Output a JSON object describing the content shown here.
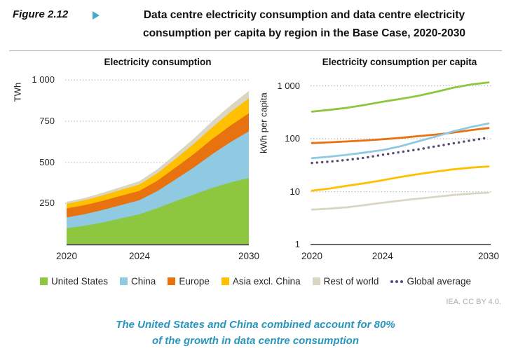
{
  "figure": {
    "label": "Figure 2.12",
    "title_line1": "Data centre electricity consumption and data centre electricity",
    "title_line2": "consumption per capita by region in the Base Case, 2020-2030"
  },
  "colors": {
    "united_states": "#8DC63F",
    "china": "#90C9E2",
    "europe": "#E8720F",
    "asia_excl_china": "#FFC000",
    "rest_of_world": "#DBD6C2",
    "global_average": "#5B4A78",
    "grid": "#ABABAB",
    "left_axis": "#595959",
    "right_axis": "#333333",
    "accent_teal": "#2796BE"
  },
  "chart_data": [
    {
      "type": "area",
      "stacked": true,
      "title": "Electricity consumption",
      "ylabel": "TWh",
      "yscale": "linear",
      "ylim": [
        0,
        1030
      ],
      "x": [
        2020,
        2021,
        2022,
        2023,
        2024,
        2025,
        2026,
        2027,
        2028,
        2029,
        2030
      ],
      "x_ticks": [
        {
          "label": "2020",
          "value": 2020
        },
        {
          "label": "2024",
          "value": 2024
        },
        {
          "label": "2030",
          "value": 2030
        }
      ],
      "y_ticks": [
        {
          "label": "250",
          "value": 250
        },
        {
          "label": "500",
          "value": 500
        },
        {
          "label": "750",
          "value": 750
        },
        {
          "label": "1 000",
          "value": 1000
        }
      ],
      "grid": true,
      "series": [
        {
          "name": "United States",
          "color_key": "united_states",
          "values": [
            100,
            115,
            135,
            160,
            185,
            222,
            265,
            305,
            345,
            378,
            405
          ]
        },
        {
          "name": "China",
          "color_key": "china",
          "values": [
            65,
            70,
            76,
            81,
            85,
            105,
            133,
            165,
            205,
            245,
            283
          ]
        },
        {
          "name": "Europe",
          "color_key": "europe",
          "values": [
            55,
            55,
            56,
            56,
            57,
            63,
            72,
            82,
            92,
            101,
            110
          ]
        },
        {
          "name": "Asia excl. China",
          "color_key": "asia_excl_china",
          "values": [
            28,
            30,
            33,
            36,
            38,
            45,
            53,
            62,
            71,
            81,
            90
          ]
        },
        {
          "name": "Rest of world",
          "color_key": "rest_of_world",
          "values": [
            13,
            14,
            16,
            18,
            21,
            25,
            29,
            33,
            38,
            42,
            46
          ]
        }
      ]
    },
    {
      "type": "line",
      "title": "Electricity consumption per capita",
      "ylabel": "kWh per capita",
      "yscale": "log",
      "ylim": [
        1,
        1300
      ],
      "x": [
        2020,
        2021,
        2022,
        2023,
        2024,
        2025,
        2026,
        2027,
        2028,
        2029,
        2030
      ],
      "x_ticks": [
        {
          "label": "2020",
          "value": 2020
        },
        {
          "label": "2024",
          "value": 2024
        },
        {
          "label": "2030",
          "value": 2030
        }
      ],
      "y_ticks": [
        {
          "label": "1",
          "value": 1
        },
        {
          "label": "10",
          "value": 10
        },
        {
          "label": "100",
          "value": 100
        },
        {
          "label": "1 000",
          "value": 1000
        }
      ],
      "grid": true,
      "series": [
        {
          "name": "Rest of world",
          "color_key": "rest_of_world",
          "style": "solid",
          "values": [
            4.6,
            4.8,
            5.1,
            5.6,
            6.2,
            6.8,
            7.4,
            8.0,
            8.7,
            9.2,
            9.6
          ]
        },
        {
          "name": "Asia excl. China",
          "color_key": "asia_excl_china",
          "style": "solid",
          "values": [
            10.5,
            11.5,
            13,
            14.5,
            16.5,
            19,
            21.5,
            24,
            26.5,
            28.5,
            30
          ]
        },
        {
          "name": "Global average",
          "color_key": "global_average",
          "style": "dotted",
          "values": [
            35,
            37,
            40,
            44,
            50,
            56,
            63,
            72,
            82,
            93,
            105
          ]
        },
        {
          "name": "Europe",
          "color_key": "europe",
          "style": "solid",
          "values": [
            83,
            86,
            89,
            93,
            98,
            104,
            112,
            120,
            131,
            146,
            160
          ]
        },
        {
          "name": "China",
          "color_key": "china",
          "style": "solid",
          "values": [
            43,
            46,
            50,
            55,
            61,
            72,
            89,
            110,
            138,
            167,
            195
          ]
        },
        {
          "name": "United States",
          "color_key": "united_states",
          "style": "solid",
          "values": [
            325,
            352,
            385,
            435,
            500,
            565,
            645,
            765,
            920,
            1060,
            1160
          ]
        }
      ]
    }
  ],
  "legend": [
    {
      "label": "United States",
      "color_key": "united_states",
      "marker": "square"
    },
    {
      "label": "China",
      "color_key": "china",
      "marker": "square"
    },
    {
      "label": "Europe",
      "color_key": "europe",
      "marker": "square"
    },
    {
      "label": "Asia excl. China",
      "color_key": "asia_excl_china",
      "marker": "square"
    },
    {
      "label": "Rest of world",
      "color_key": "rest_of_world",
      "marker": "square"
    },
    {
      "label": "Global average",
      "color_key": "global_average",
      "marker": "dots"
    }
  ],
  "credit": "IEA. CC BY 4.0.",
  "caption": {
    "line1": "The United States and China combined account for 80%",
    "line2": "of the growth in data centre consumption"
  }
}
